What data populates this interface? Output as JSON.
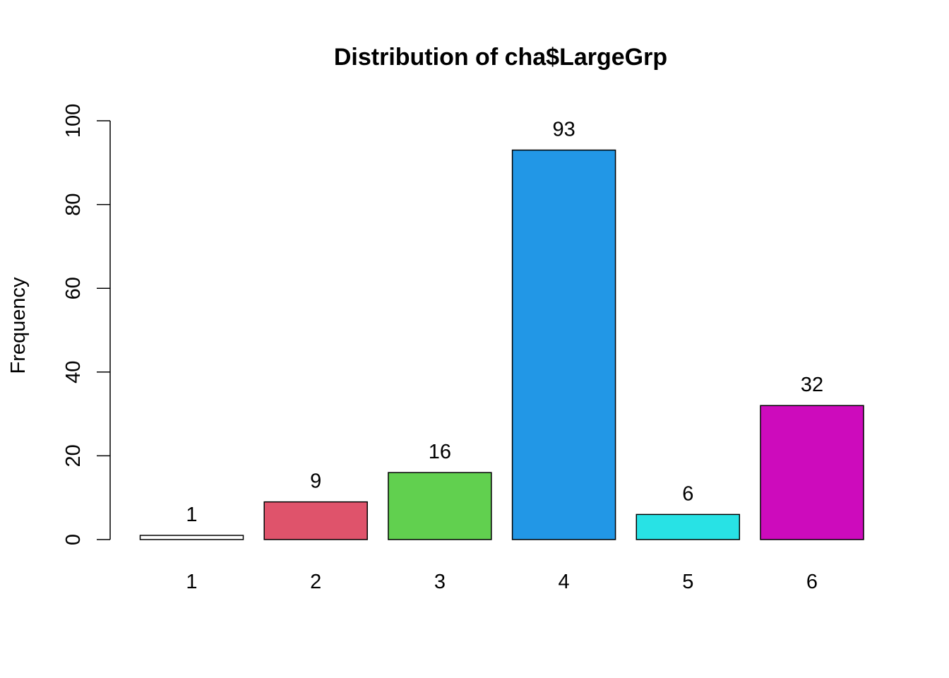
{
  "chart_data": {
    "type": "bar",
    "title": "Distribution of cha$LargeGrp",
    "xlabel": "",
    "ylabel": "Frequency",
    "categories": [
      "1",
      "2",
      "3",
      "4",
      "5",
      "6"
    ],
    "values": [
      1,
      9,
      16,
      93,
      6,
      32
    ],
    "data_labels": [
      "1",
      "9",
      "16",
      "93",
      "6",
      "32"
    ],
    "colors": [
      "#FFFFFF",
      "#DF536B",
      "#61D04F",
      "#2297E6",
      "#28E2E5",
      "#CD0BBC"
    ],
    "ylim": [
      0,
      100
    ],
    "yticks": [
      0,
      20,
      40,
      60,
      80,
      100
    ],
    "ytick_labels": [
      "0",
      "20",
      "40",
      "60",
      "80",
      "100"
    ],
    "grid": false,
    "legend": "none"
  }
}
